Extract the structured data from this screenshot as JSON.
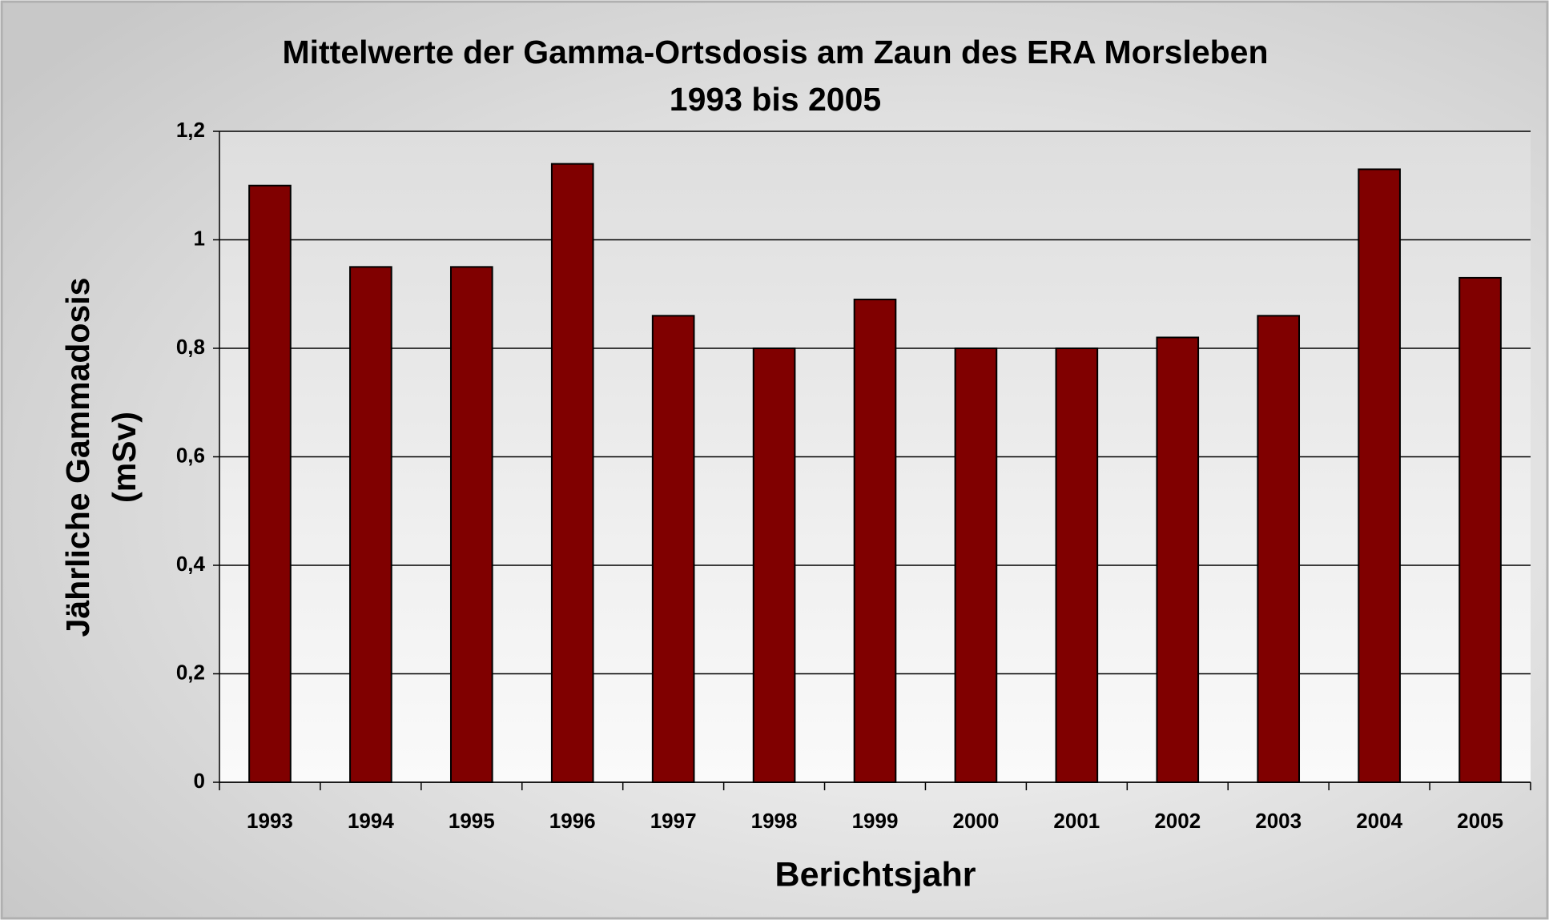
{
  "chart_data": {
    "type": "bar",
    "title": [
      "Mittelwerte der Gamma-Ortsdosis am Zaun des ERA Morsleben",
      "1993 bis 2005"
    ],
    "x_label": "Berichtsjahr",
    "y_label": [
      "Jährliche Gammadosis",
      "(mSv)"
    ],
    "categories": [
      "1993",
      "1994",
      "1995",
      "1996",
      "1997",
      "1998",
      "1999",
      "2000",
      "2001",
      "2002",
      "2003",
      "2004",
      "2005"
    ],
    "values": [
      1.1,
      0.95,
      0.95,
      1.14,
      0.86,
      0.8,
      0.89,
      0.8,
      0.8,
      0.82,
      0.86,
      1.13,
      0.93
    ],
    "color": "#800000",
    "ylim": [
      0,
      1.2
    ],
    "yticks": [
      0,
      {
        "value": 0.2,
        "label": "0,2"
      },
      {
        "value": 0.4,
        "label": "0,4"
      },
      {
        "value": 0.6,
        "label": "0,6"
      },
      {
        "value": 0.8,
        "label": "0,8"
      },
      1,
      {
        "value": 1.2,
        "label": "1,2"
      }
    ],
    "grid": true
  }
}
